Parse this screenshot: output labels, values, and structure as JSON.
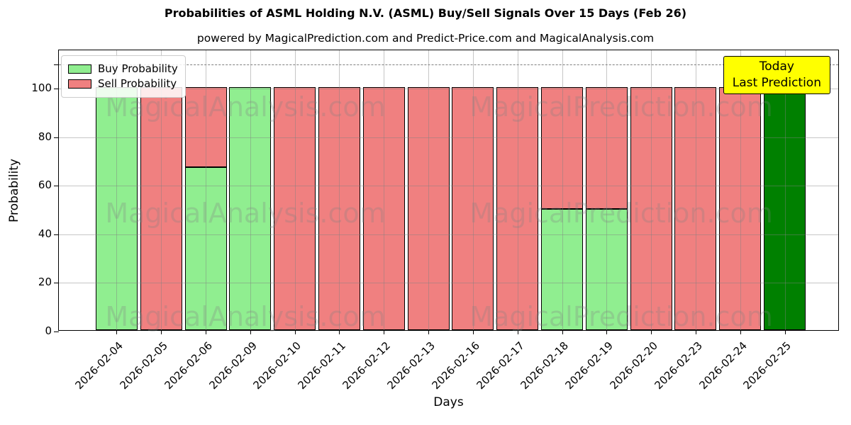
{
  "title": "Probabilities of ASML Holding N.V. (ASML) Buy/Sell Signals Over 15 Days (Feb 26)",
  "subtitle": "powered by MagicalPrediction.com and Predict-Price.com and MagicalAnalysis.com",
  "legend": {
    "items": [
      {
        "label": "Buy Probability",
        "color": "#90ee90"
      },
      {
        "label": "Sell Probability",
        "color": "#f08080"
      }
    ]
  },
  "annotation": {
    "line1": "Today",
    "line2": "Last Prediction",
    "bg_color": "#ffff00",
    "border_color": "#000000"
  },
  "watermarks": {
    "left": "MagicalAnalysis.com",
    "right": "MagicalPrediction.com"
  },
  "axes": {
    "xlabel": "Days",
    "ylabel": "Probability",
    "yticks": [
      0,
      20,
      40,
      60,
      80,
      100
    ],
    "extra_unlabeled_tick": 110,
    "ylim": [
      0,
      116
    ]
  },
  "colors": {
    "buy": "#90ee90",
    "sell": "#f08080",
    "today_buy": "#008000",
    "annotation_bg": "#ffff00",
    "grid": "#b0b0b0",
    "dashed_line": "#7f7f7f",
    "bar_edge": "#000000"
  },
  "chart_data": {
    "type": "bar",
    "stacked": true,
    "title": "Probabilities of ASML Holding N.V. (ASML) Buy/Sell Signals Over 15 Days (Feb 26)",
    "xlabel": "Days",
    "ylabel": "Probability",
    "ylim": [
      0,
      116
    ],
    "grid": true,
    "legend_position": "upper left",
    "hline": {
      "y": 110,
      "style": "dashed",
      "color": "#7f7f7f"
    },
    "categories": [
      "2026-02-04",
      "2026-02-05",
      "2026-02-06",
      "2026-02-09",
      "2026-02-10",
      "2026-02-11",
      "2026-02-12",
      "2026-02-13",
      "2026-02-16",
      "2026-02-17",
      "2026-02-18",
      "2026-02-19",
      "2026-02-20",
      "2026-02-23",
      "2026-02-24",
      "2026-02-25"
    ],
    "series": [
      {
        "name": "Buy Probability",
        "color": "#90ee90",
        "values": [
          100,
          0,
          67,
          100,
          0,
          0,
          0,
          0,
          0,
          0,
          50,
          50,
          0,
          0,
          0,
          100
        ]
      },
      {
        "name": "Sell Probability",
        "color": "#f08080",
        "values": [
          0,
          100,
          33,
          0,
          100,
          100,
          100,
          100,
          100,
          100,
          50,
          50,
          100,
          100,
          100,
          0
        ]
      }
    ],
    "today_bar": {
      "index": 15,
      "date": "2026-02-25",
      "color": "#008000",
      "annotation": "Today Last Prediction"
    }
  }
}
